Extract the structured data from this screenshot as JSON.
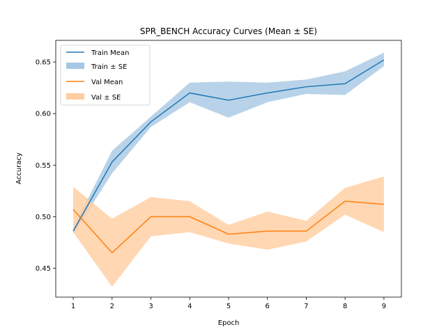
{
  "chart_data": {
    "type": "line",
    "title": "SPR_BENCH Accuracy Curves (Mean ± SE)",
    "xlabel": "Epoch",
    "ylabel": "Accuracy",
    "x": [
      1,
      2,
      3,
      4,
      5,
      6,
      7,
      8,
      9
    ],
    "xlim": [
      0.55,
      9.45
    ],
    "ylim": [
      0.422,
      0.671
    ],
    "xticks": [
      1,
      2,
      3,
      4,
      5,
      6,
      7,
      8,
      9
    ],
    "yticks": [
      0.45,
      0.5,
      0.55,
      0.6,
      0.65
    ],
    "ytick_labels": [
      "0.45",
      "0.50",
      "0.55",
      "0.60",
      "0.65"
    ],
    "grid": false,
    "legend_position": "top-left",
    "series": [
      {
        "name": "Train Mean",
        "band_name": "Train ± SE",
        "color": "#1f77b4",
        "band_color": "#a6c8e4",
        "mean": [
          0.486,
          0.553,
          0.592,
          0.62,
          0.613,
          0.62,
          0.626,
          0.629,
          0.652
        ],
        "upper": [
          0.489,
          0.564,
          0.597,
          0.63,
          0.631,
          0.63,
          0.633,
          0.641,
          0.659
        ],
        "lower": [
          0.483,
          0.542,
          0.587,
          0.611,
          0.596,
          0.611,
          0.619,
          0.618,
          0.646
        ]
      },
      {
        "name": "Val Mean",
        "band_name": "Val ± SE",
        "color": "#ff7f0e",
        "band_color": "#ffcd9f",
        "mean": [
          0.507,
          0.465,
          0.5,
          0.5,
          0.483,
          0.486,
          0.486,
          0.515,
          0.512
        ],
        "upper": [
          0.529,
          0.498,
          0.519,
          0.515,
          0.492,
          0.505,
          0.496,
          0.528,
          0.539
        ],
        "lower": [
          0.485,
          0.432,
          0.481,
          0.485,
          0.474,
          0.468,
          0.476,
          0.502,
          0.485
        ]
      }
    ]
  }
}
